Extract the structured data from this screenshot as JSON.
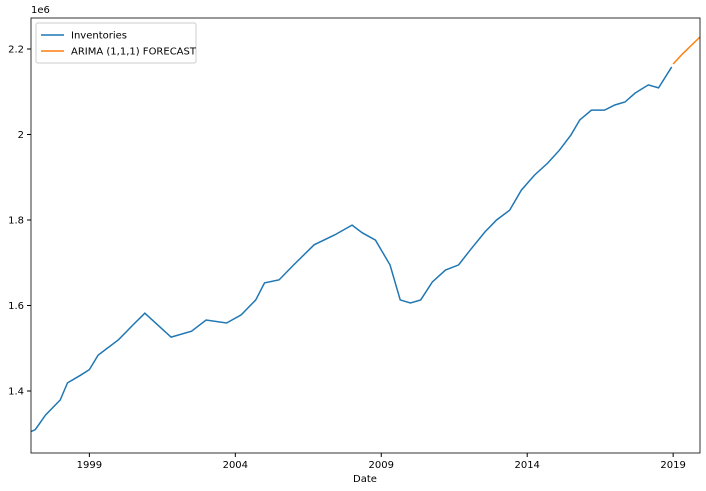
{
  "chart_data": {
    "type": "line",
    "x_label": "Date",
    "offset_label": "1e6",
    "xlim": [
      1997.0,
      2019.92
    ],
    "ylim": [
      1.255,
      2.2725
    ],
    "xticks": [
      1999,
      2004,
      2009,
      2014,
      2019
    ],
    "yticks": [
      1.4,
      1.6,
      1.8,
      2.0,
      2.2
    ],
    "legend": "upper left",
    "series": [
      {
        "name": "Inventories",
        "color": "#1f77b4",
        "x": [
          1997.0,
          1997.15,
          1997.5,
          1998.0,
          1998.25,
          1998.7,
          1999.0,
          1999.3,
          2000.0,
          2000.5,
          2000.9,
          2001.8,
          2002.5,
          2003.0,
          2003.7,
          2004.2,
          2004.7,
          2005.0,
          2005.5,
          2006.0,
          2006.7,
          2007.4,
          2008.0,
          2008.35,
          2008.8,
          2009.3,
          2009.65,
          2010.0,
          2010.35,
          2010.75,
          2011.2,
          2011.65,
          2012.05,
          2012.55,
          2012.95,
          2013.4,
          2013.8,
          2014.25,
          2014.7,
          2015.1,
          2015.5,
          2015.8,
          2016.2,
          2016.65,
          2017.0,
          2017.35,
          2017.7,
          2018.15,
          2018.5,
          2018.95
        ],
        "values": [
          1.305,
          1.31,
          1.344,
          1.379,
          1.419,
          1.437,
          1.45,
          1.484,
          1.52,
          1.555,
          1.582,
          1.526,
          1.54,
          1.566,
          1.559,
          1.578,
          1.613,
          1.653,
          1.66,
          1.695,
          1.742,
          1.765,
          1.788,
          1.77,
          1.753,
          1.695,
          1.613,
          1.606,
          1.613,
          1.655,
          1.683,
          1.695,
          1.73,
          1.772,
          1.8,
          1.823,
          1.87,
          1.905,
          1.933,
          1.963,
          1.999,
          2.034,
          2.057,
          2.057,
          2.069,
          2.076,
          2.097,
          2.116,
          2.109,
          2.158
        ]
      },
      {
        "name": "ARIMA (1,1,1) FORECAST",
        "color": "#ff7f0e",
        "x": [
          2019.0,
          2019.3,
          2019.6,
          2019.92
        ],
        "values": [
          2.165,
          2.187,
          2.207,
          2.228
        ]
      }
    ]
  }
}
